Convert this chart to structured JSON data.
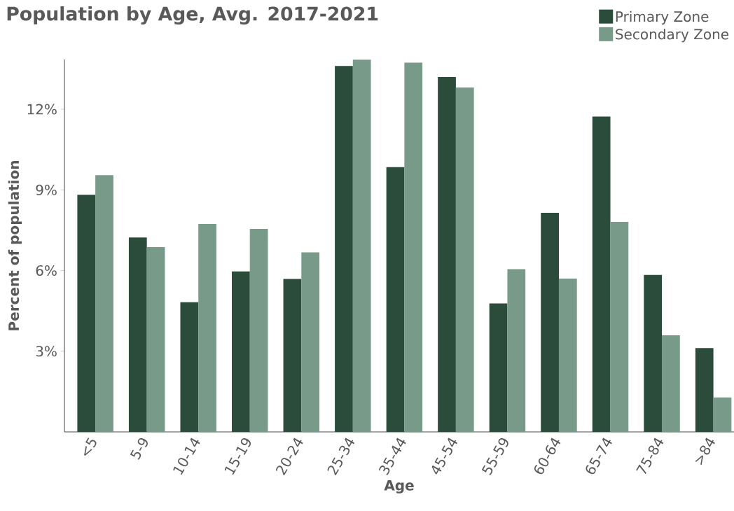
{
  "chart_data": {
    "type": "bar",
    "title": "Population by Age, Avg. 2017-2021",
    "xlabel": "Age",
    "ylabel": "Percent of population",
    "categories": [
      "<5",
      "5-9",
      "10-14",
      "15-19",
      "20-24",
      "25-34",
      "35-44",
      "45-54",
      "55-59",
      "60-64",
      "65-74",
      "75-84",
      ">84"
    ],
    "series": [
      {
        "name": "Primary Zone",
        "color": "#2b4c3b",
        "values": [
          8.82,
          7.23,
          4.82,
          5.97,
          5.69,
          13.61,
          9.85,
          13.2,
          4.78,
          8.15,
          11.73,
          5.84,
          3.12
        ]
      },
      {
        "name": "Secondary Zone",
        "color": "#789a88",
        "values": [
          9.55,
          6.87,
          7.73,
          7.55,
          6.68,
          13.84,
          13.73,
          12.81,
          6.05,
          5.7,
          7.81,
          3.59,
          1.28
        ]
      }
    ],
    "ylim": [
      0,
      13.85
    ],
    "yticks": [
      {
        "value": 3,
        "label": "3%"
      },
      {
        "value": 6,
        "label": "6%"
      },
      {
        "value": 9,
        "label": "9%"
      },
      {
        "value": 12,
        "label": "12%"
      }
    ],
    "legend": "top right"
  }
}
